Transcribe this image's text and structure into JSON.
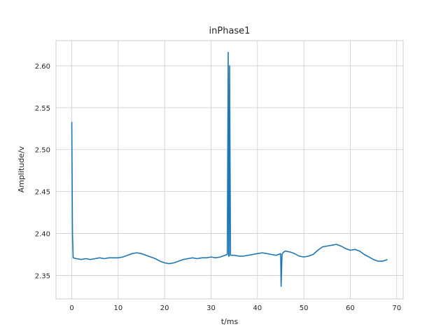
{
  "chart_data": {
    "type": "line",
    "title": "inPhase1",
    "xlabel": "t/ms",
    "ylabel": "Amplitude/v",
    "xlim": [
      -3.4,
      71.4
    ],
    "ylim": [
      2.322,
      2.63
    ],
    "xticks": [
      0,
      10,
      20,
      30,
      40,
      50,
      60,
      70
    ],
    "yticks": [
      2.35,
      2.4,
      2.45,
      2.5,
      2.55,
      2.6
    ],
    "ytick_labels": [
      "2.35",
      "2.40",
      "2.45",
      "2.50",
      "2.55",
      "2.60"
    ],
    "grid": true,
    "colors": {
      "series": "#1f77b4",
      "grid": "#cccccc",
      "text": "#262626"
    },
    "series": [
      {
        "x": [
          0,
          0.15,
          0.3,
          1,
          2,
          3,
          4,
          5,
          6,
          7,
          8,
          9,
          10,
          11,
          12,
          13,
          14,
          15,
          16,
          17,
          18,
          19,
          20,
          21,
          22,
          23,
          24,
          25,
          26,
          27,
          28,
          29,
          30,
          31,
          32,
          33,
          33.5,
          33.7,
          33.8,
          33.9,
          34.0,
          34.2,
          35,
          36,
          37,
          38,
          39,
          40,
          41,
          42,
          43,
          44,
          45,
          45.1,
          45.3,
          45.5,
          45.7,
          46,
          47,
          48,
          49,
          50,
          51,
          52,
          53,
          54,
          55,
          56,
          57,
          58,
          59,
          60,
          61,
          62,
          63,
          64,
          65,
          66,
          67,
          68
        ],
        "y": [
          2.533,
          2.4,
          2.371,
          2.37,
          2.369,
          2.37,
          2.369,
          2.37,
          2.371,
          2.37,
          2.371,
          2.371,
          2.371,
          2.372,
          2.374,
          2.376,
          2.377,
          2.376,
          2.374,
          2.372,
          2.37,
          2.367,
          2.365,
          2.364,
          2.365,
          2.367,
          2.369,
          2.37,
          2.371,
          2.37,
          2.371,
          2.371,
          2.372,
          2.371,
          2.372,
          2.374,
          2.375,
          2.616,
          2.373,
          2.373,
          2.6,
          2.374,
          2.374,
          2.373,
          2.373,
          2.374,
          2.375,
          2.376,
          2.377,
          2.376,
          2.375,
          2.374,
          2.376,
          2.337,
          2.375,
          2.377,
          2.378,
          2.379,
          2.378,
          2.376,
          2.373,
          2.372,
          2.373,
          2.375,
          2.38,
          2.384,
          2.385,
          2.386,
          2.387,
          2.385,
          2.382,
          2.38,
          2.381,
          2.379,
          2.375,
          2.372,
          2.369,
          2.367,
          2.367,
          2.369
        ]
      }
    ]
  }
}
